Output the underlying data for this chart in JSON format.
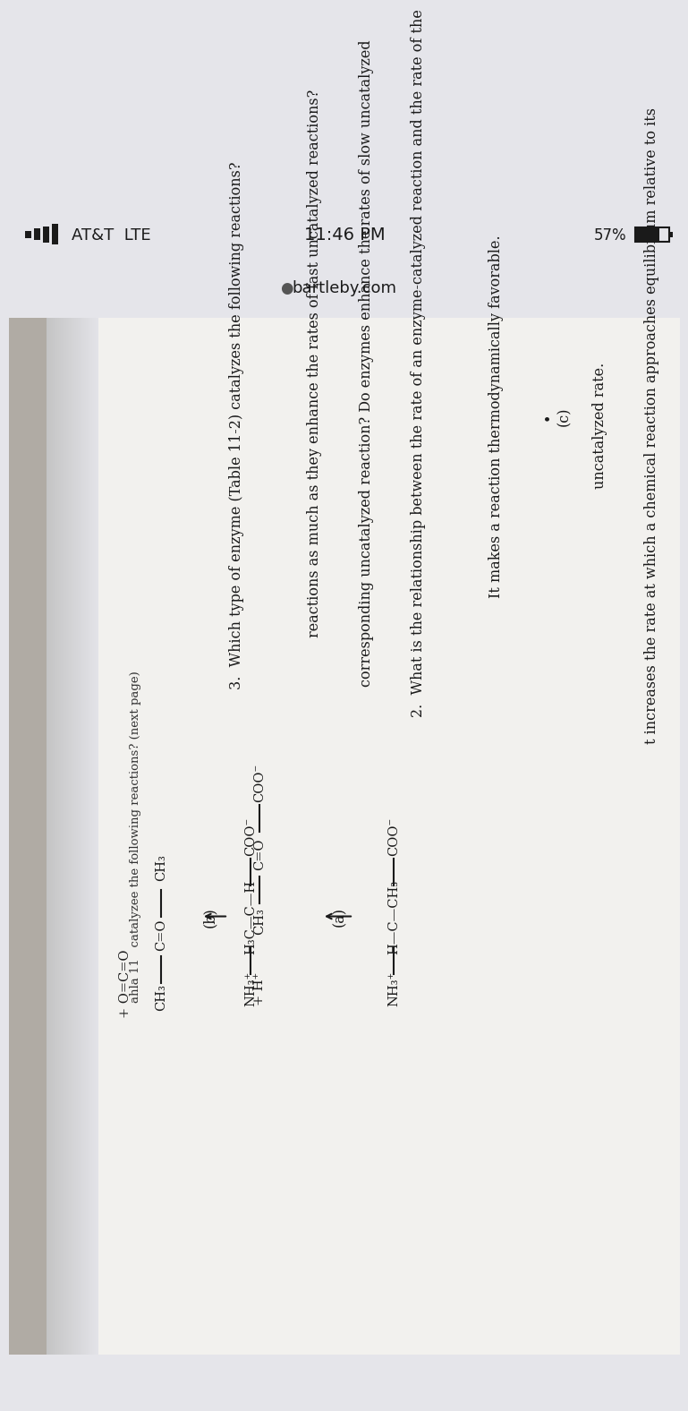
{
  "bg_status": "#e5e5ea",
  "bg_page_light": "#d8d5d0",
  "bg_page_white": "#f0efec",
  "bg_brown": "#7a6a55",
  "text_color": "#1a1a1a",
  "status_bar": {
    "carrier": "AT&T  LTE",
    "time": "11:46 PM",
    "battery_text": "57%",
    "url": "bartleby.com"
  },
  "page_lines": [
    "t increases the rate at which a chemical reaction approaches equilibrium relative to its",
    "uncatalyzed rate.",
    "(c)",
    "It makes a reaction thermodynamically favorable.",
    "2.  What is the relationship between the rate of an enzyme-catalyzed reaction and the rate of the",
    "corresponding uncatalyzed reaction? Do enzymes enhance the rates of slow uncatalyzed",
    "reactions as much as they enhance the rates of fast uncatalyzed reactions?",
    "3.  Which type of enzyme (Table 11-2) catalyzes the following reactions?"
  ],
  "footer": "ahla 11   catalyzee the following reactions? (next page)"
}
